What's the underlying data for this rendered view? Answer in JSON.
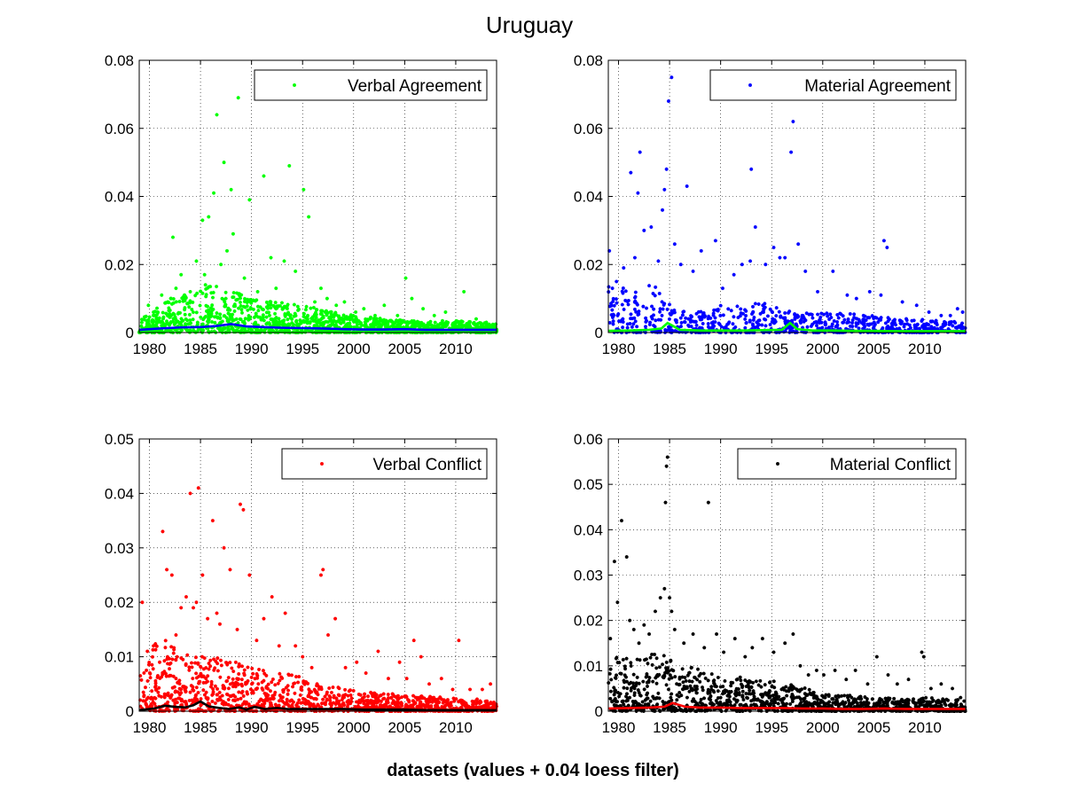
{
  "title": "Uruguay",
  "xlabel": "datasets (values + 0.04 loess filter)",
  "chart_data": [
    {
      "type": "scatter",
      "series": [
        {
          "name": "Verbal Agreement",
          "color": "#00ff00",
          "kind": "points",
          "x": [
            1979.9,
            1980.4,
            1981.2,
            1981.8,
            1982.3,
            1982.6,
            1983.1,
            1983.5,
            1984.0,
            1984.6,
            1985.2,
            1985.4,
            1985.8,
            1986.3,
            1986.6,
            1987.0,
            1987.3,
            1987.6,
            1988.0,
            1988.2,
            1988.7,
            1989.3,
            1989.8,
            1990.6,
            1991.2,
            1991.9,
            1992.4,
            1993.2,
            1993.7,
            1994.3,
            1995.1,
            1995.6,
            1996.2,
            1996.8,
            1997.4,
            1998.3,
            1999.1,
            2000.2,
            2001.0,
            2002.1,
            2003.0,
            2004.3,
            2005.1,
            2005.7,
            2006.8,
            2007.9,
            2009.0,
            2010.1,
            2010.8,
            2012.0,
            2013.0,
            2013.5
          ],
          "y": [
            0.008,
            0.006,
            0.011,
            0.009,
            0.028,
            0.013,
            0.017,
            0.01,
            0.012,
            0.021,
            0.033,
            0.017,
            0.034,
            0.041,
            0.064,
            0.02,
            0.05,
            0.024,
            0.042,
            0.029,
            0.069,
            0.016,
            0.039,
            0.012,
            0.046,
            0.022,
            0.013,
            0.021,
            0.049,
            0.018,
            0.042,
            0.034,
            0.009,
            0.013,
            0.01,
            0.008,
            0.009,
            0.006,
            0.007,
            0.005,
            0.008,
            0.005,
            0.016,
            0.01,
            0.007,
            0.005,
            0.006,
            0.003,
            0.012,
            0.004,
            0.003,
            0.002
          ]
        },
        {
          "name": "",
          "color": "#0000ff",
          "kind": "line",
          "x": [
            1979.0,
            1981.0,
            1983.0,
            1985.0,
            1986.5,
            1988.0,
            1989.5,
            1991.0,
            1993.0,
            1995.0,
            1997.0,
            1999.0,
            2001.0,
            2003.0,
            2005.0,
            2007.0,
            2009.0,
            2011.0,
            2013.0,
            2014.0
          ],
          "y": [
            0.0008,
            0.0012,
            0.0015,
            0.0016,
            0.0019,
            0.0025,
            0.0018,
            0.0016,
            0.0014,
            0.0013,
            0.0012,
            0.001,
            0.0009,
            0.0009,
            0.001,
            0.0008,
            0.0008,
            0.0008,
            0.0008,
            0.0008
          ]
        }
      ],
      "xlim": [
        1979,
        2014
      ],
      "ylim": [
        0,
        0.08
      ],
      "xticks": [
        "1980",
        "1985",
        "1990",
        "1995",
        "2000",
        "2005",
        "2010"
      ],
      "yticks": [
        "0",
        "0.02",
        "0.04",
        "0.06",
        "0.08"
      ],
      "grid": true,
      "legend": "top-right",
      "dense": {
        "max_by_year": [
          [
            1979,
            0.0035
          ],
          [
            1982,
            0.01
          ],
          [
            1986,
            0.015
          ],
          [
            1990,
            0.01
          ],
          [
            1995,
            0.008
          ],
          [
            2000,
            0.005
          ],
          [
            2005,
            0.0035
          ],
          [
            2010,
            0.0035
          ],
          [
            2014,
            0.0025
          ]
        ],
        "density": 1500,
        "seed": 11
      }
    },
    {
      "type": "scatter",
      "series": [
        {
          "name": "Material Agreement",
          "color": "#0000ff",
          "kind": "points",
          "x": [
            1979.1,
            1979.4,
            1979.8,
            1980.5,
            1981.2,
            1981.6,
            1981.9,
            1982.1,
            1982.5,
            1983.2,
            1983.9,
            1984.3,
            1984.5,
            1984.7,
            1984.9,
            1985.2,
            1985.5,
            1986.1,
            1986.7,
            1987.3,
            1988.1,
            1989.5,
            1990.2,
            1991.3,
            1992.1,
            1992.9,
            1993.0,
            1993.4,
            1994.4,
            1995.2,
            1995.8,
            1996.3,
            1996.9,
            1997.1,
            1997.6,
            1998.3,
            1999.5,
            2001.0,
            2002.4,
            2003.3,
            2004.6,
            2005.7,
            2006.0,
            2006.3,
            2007.8,
            2009.2,
            2010.4,
            2011.6,
            2012.5,
            2013.2,
            2013.7
          ],
          "y": [
            0.024,
            0.013,
            0.015,
            0.019,
            0.047,
            0.022,
            0.041,
            0.053,
            0.03,
            0.031,
            0.021,
            0.036,
            0.042,
            0.048,
            0.068,
            0.075,
            0.026,
            0.02,
            0.043,
            0.018,
            0.024,
            0.027,
            0.013,
            0.017,
            0.02,
            0.021,
            0.048,
            0.031,
            0.02,
            0.025,
            0.022,
            0.022,
            0.053,
            0.062,
            0.026,
            0.018,
            0.012,
            0.018,
            0.011,
            0.01,
            0.012,
            0.011,
            0.027,
            0.025,
            0.009,
            0.008,
            0.006,
            0.005,
            0.005,
            0.007,
            0.006
          ]
        },
        {
          "name": "",
          "color": "#00ff00",
          "kind": "line",
          "x": [
            1979.0,
            1981.0,
            1983.0,
            1984.2,
            1984.8,
            1985.3,
            1986.0,
            1988.0,
            1990.0,
            1992.0,
            1994.0,
            1996.0,
            1996.8,
            1997.5,
            1999.0,
            2001.0,
            2003.0,
            2005.0,
            2007.0,
            2009.0,
            2011.0,
            2013.0,
            2014.0
          ],
          "y": [
            0.0005,
            0.0006,
            0.0008,
            0.0012,
            0.0028,
            0.002,
            0.0008,
            0.0006,
            0.0006,
            0.0006,
            0.0007,
            0.0008,
            0.0028,
            0.001,
            0.0006,
            0.0006,
            0.0005,
            0.0005,
            0.0004,
            0.0004,
            0.0004,
            0.0004,
            0.0004
          ]
        }
      ],
      "xlim": [
        1979,
        2014
      ],
      "ylim": [
        0,
        0.08
      ],
      "xticks": [
        "1980",
        "1985",
        "1990",
        "1995",
        "2000",
        "2005",
        "2010"
      ],
      "yticks": [
        "0",
        "0.02",
        "0.04",
        "0.06",
        "0.08"
      ],
      "grid": true,
      "legend": "top-right",
      "dense": {
        "max_by_year": [
          [
            1979,
            0.016
          ],
          [
            1981,
            0.012
          ],
          [
            1984,
            0.015
          ],
          [
            1986,
            0.006
          ],
          [
            1990,
            0.008
          ],
          [
            1994,
            0.009
          ],
          [
            1997,
            0.006
          ],
          [
            2001,
            0.006
          ],
          [
            2005,
            0.005
          ],
          [
            2009,
            0.004
          ],
          [
            2014,
            0.003
          ]
        ],
        "density": 800,
        "seed": 23
      }
    },
    {
      "type": "scatter",
      "series": [
        {
          "name": "Verbal Conflict",
          "color": "#ff0000",
          "kind": "points",
          "x": [
            1979.3,
            1979.8,
            1980.4,
            1981.0,
            1981.3,
            1981.7,
            1982.2,
            1982.6,
            1983.1,
            1983.6,
            1984.0,
            1984.3,
            1984.6,
            1984.8,
            1985.2,
            1985.7,
            1986.2,
            1986.6,
            1986.9,
            1987.3,
            1987.9,
            1988.6,
            1988.9,
            1989.2,
            1989.8,
            1990.5,
            1991.2,
            1992.0,
            1992.7,
            1993.3,
            1994.3,
            1995.0,
            1995.9,
            1996.8,
            1997.0,
            1997.5,
            1998.2,
            1999.2,
            2000.3,
            2001.2,
            2002.4,
            2003.4,
            2004.5,
            2005.2,
            2005.9,
            2006.6,
            2007.4,
            2008.6,
            2009.7,
            2010.3,
            2011.4,
            2012.6,
            2013.4
          ],
          "y": [
            0.02,
            0.011,
            0.012,
            0.009,
            0.033,
            0.026,
            0.025,
            0.014,
            0.019,
            0.021,
            0.04,
            0.019,
            0.02,
            0.041,
            0.025,
            0.017,
            0.035,
            0.018,
            0.016,
            0.03,
            0.026,
            0.015,
            0.038,
            0.037,
            0.025,
            0.013,
            0.017,
            0.021,
            0.012,
            0.018,
            0.012,
            0.01,
            0.008,
            0.025,
            0.026,
            0.014,
            0.017,
            0.008,
            0.009,
            0.007,
            0.011,
            0.006,
            0.009,
            0.006,
            0.013,
            0.01,
            0.005,
            0.006,
            0.004,
            0.013,
            0.004,
            0.004,
            0.005
          ]
        },
        {
          "name": "",
          "color": "#000000",
          "kind": "line",
          "x": [
            1979.0,
            1980.5,
            1981.5,
            1982.5,
            1983.5,
            1984.3,
            1985.0,
            1985.8,
            1986.8,
            1987.8,
            1988.8,
            1989.5,
            1990.3,
            1991.3,
            1992.5,
            1993.5,
            1995.0,
            1997.0,
            1999.0,
            2001.0,
            2003.0,
            2005.0,
            2007.0,
            2009.0,
            2011.0,
            2013.0,
            2014.0
          ],
          "y": [
            0.0002,
            0.0005,
            0.001,
            0.0008,
            0.0007,
            0.0011,
            0.0018,
            0.0009,
            0.0006,
            0.0004,
            0.0007,
            0.0003,
            0.0008,
            0.0004,
            0.0006,
            0.0004,
            0.0004,
            0.0004,
            0.0004,
            0.0003,
            0.0003,
            0.0003,
            0.0002,
            0.0002,
            0.0002,
            0.0002,
            0.0002
          ]
        }
      ],
      "xlim": [
        1979,
        2014
      ],
      "ylim": [
        0,
        0.05
      ],
      "xticks": [
        "1980",
        "1985",
        "1990",
        "1995",
        "2000",
        "2005",
        "2010"
      ],
      "yticks": [
        "0",
        "0.01",
        "0.02",
        "0.03",
        "0.04",
        "0.05"
      ],
      "grid": true,
      "legend": "top-right",
      "dense": {
        "max_by_year": [
          [
            1979,
            0.009
          ],
          [
            1981,
            0.014
          ],
          [
            1984,
            0.01
          ],
          [
            1987,
            0.01
          ],
          [
            1990,
            0.008
          ],
          [
            1994,
            0.007
          ],
          [
            1997,
            0.005
          ],
          [
            2000,
            0.004
          ],
          [
            2005,
            0.003
          ],
          [
            2010,
            0.0025
          ],
          [
            2014,
            0.002
          ]
        ],
        "density": 1300,
        "seed": 37
      }
    },
    {
      "type": "scatter",
      "series": [
        {
          "name": "Material Conflict",
          "color": "#000000",
          "kind": "points",
          "x": [
            1979.2,
            1979.6,
            1979.9,
            1980.3,
            1980.8,
            1981.1,
            1981.5,
            1982.0,
            1982.5,
            1983.0,
            1983.6,
            1984.1,
            1984.5,
            1984.6,
            1984.7,
            1984.8,
            1985.0,
            1985.2,
            1985.5,
            1986.4,
            1987.3,
            1988.4,
            1988.8,
            1989.6,
            1990.3,
            1991.4,
            1992.4,
            1993.1,
            1994.1,
            1995.2,
            1996.3,
            1997.1,
            1997.8,
            1998.6,
            1999.4,
            2000.1,
            2001.2,
            2002.3,
            2003.2,
            2004.4,
            2005.3,
            2006.4,
            2007.3,
            2008.4,
            2009.7,
            2009.9,
            2010.6,
            2011.6,
            2012.7,
            2013.5
          ],
          "y": [
            0.016,
            0.033,
            0.024,
            0.042,
            0.034,
            0.02,
            0.018,
            0.015,
            0.019,
            0.017,
            0.022,
            0.025,
            0.027,
            0.046,
            0.054,
            0.056,
            0.025,
            0.022,
            0.018,
            0.015,
            0.017,
            0.014,
            0.046,
            0.017,
            0.013,
            0.016,
            0.012,
            0.014,
            0.016,
            0.013,
            0.015,
            0.017,
            0.01,
            0.008,
            0.009,
            0.008,
            0.009,
            0.007,
            0.009,
            0.006,
            0.012,
            0.008,
            0.006,
            0.007,
            0.013,
            0.012,
            0.005,
            0.006,
            0.005,
            0.003
          ]
        },
        {
          "name": "",
          "color": "#ff0000",
          "kind": "line",
          "x": [
            1979.0,
            1981.0,
            1983.0,
            1984.5,
            1985.3,
            1986.5,
            1988.0,
            1990.0,
            1992.0,
            1994.0,
            1996.0,
            1998.0,
            2000.0,
            2002.0,
            2004.0,
            2006.0,
            2008.0,
            2010.0,
            2012.0,
            2014.0
          ],
          "y": [
            0.0006,
            0.0007,
            0.0008,
            0.001,
            0.0018,
            0.001,
            0.0008,
            0.0008,
            0.0007,
            0.0007,
            0.0007,
            0.0006,
            0.0006,
            0.0005,
            0.0005,
            0.0006,
            0.0005,
            0.0005,
            0.0005,
            0.0005
          ]
        }
      ],
      "xlim": [
        1979,
        2014
      ],
      "ylim": [
        0,
        0.06
      ],
      "xticks": [
        "1980",
        "1985",
        "1990",
        "1995",
        "2000",
        "2005",
        "2010"
      ],
      "yticks": [
        "0",
        "0.01",
        "0.02",
        "0.03",
        "0.04",
        "0.05",
        "0.06"
      ],
      "grid": true,
      "legend": "top-right",
      "dense": {
        "max_by_year": [
          [
            1979,
            0.012
          ],
          [
            1981,
            0.012
          ],
          [
            1984,
            0.013
          ],
          [
            1987,
            0.01
          ],
          [
            1990,
            0.008
          ],
          [
            1994,
            0.007
          ],
          [
            1997,
            0.006
          ],
          [
            2000,
            0.004
          ],
          [
            2005,
            0.003
          ],
          [
            2010,
            0.003
          ],
          [
            2014,
            0.0025
          ]
        ],
        "density": 1300,
        "seed": 53
      }
    }
  ]
}
